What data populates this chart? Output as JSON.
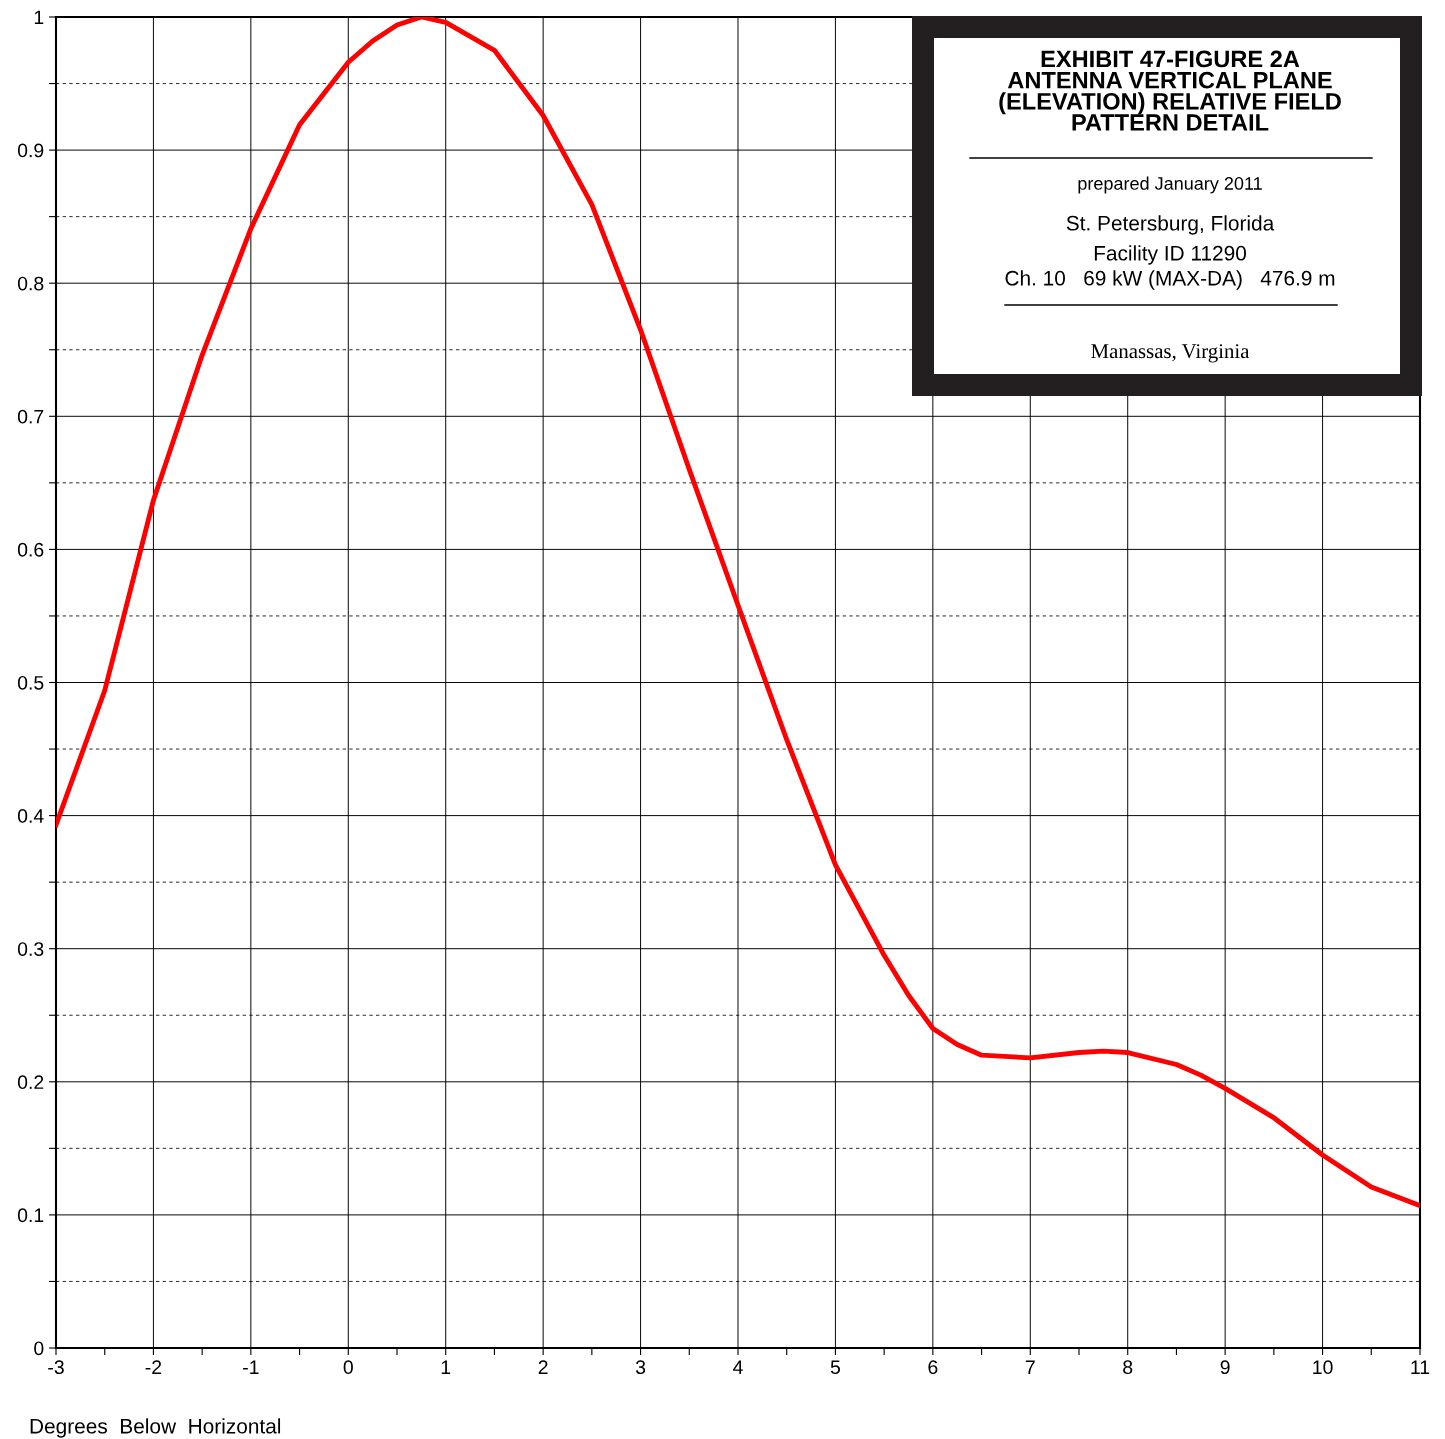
{
  "chart_data": {
    "type": "line",
    "title": "EXHIBIT 47-FIGURE 2A\nANTENNA VERTICAL PLANE\n(ELEVATION) RELATIVE FIELD\nPATTERN DETAIL",
    "xlabel": "Degrees  Below  Horizontal",
    "annotations": [
      "prepared January 2011",
      "St. Petersburg, Florida",
      "Facility ID 11290",
      "Ch. 10   69 kW (MAX-DA)   476.9 m",
      "Manassas, Virginia"
    ],
    "x": [
      -3,
      -2.5,
      -2,
      -1.5,
      -1,
      -0.5,
      0,
      0.25,
      0.5,
      0.75,
      1,
      1.5,
      2,
      2.5,
      3,
      3.5,
      4,
      4.5,
      5,
      5.5,
      5.75,
      6,
      6.25,
      6.5,
      7,
      7.5,
      7.75,
      8,
      8.5,
      8.75,
      9,
      9.5,
      10,
      10.5,
      11
    ],
    "series": [
      {
        "color": "#ff0000",
        "values": [
          0.393,
          0.494,
          0.637,
          0.746,
          0.841,
          0.919,
          0.966,
          0.982,
          0.994,
          1.0,
          0.996,
          0.975,
          0.926,
          0.859,
          0.765,
          0.66,
          0.558,
          0.457,
          0.363,
          0.295,
          0.265,
          0.24,
          0.228,
          0.22,
          0.218,
          0.222,
          0.223,
          0.222,
          0.213,
          0.205,
          0.195,
          0.173,
          0.145,
          0.121,
          0.107
        ]
      }
    ],
    "xlim": [
      -3,
      11
    ],
    "ylim": [
      0,
      1
    ],
    "xticks": [
      -3,
      {
        "value": -2.5,
        "label": null
      },
      -2,
      {
        "value": -1.5,
        "label": null
      },
      -1,
      {
        "value": -0.5,
        "label": null
      },
      0,
      {
        "value": 0.5,
        "label": null
      },
      1,
      {
        "value": 1.5,
        "label": null
      },
      2,
      {
        "value": 2.5,
        "label": null
      },
      3,
      {
        "value": 3.5,
        "label": null
      },
      4,
      {
        "value": 4.5,
        "label": null
      },
      5,
      {
        "value": 5.5,
        "label": null
      },
      6,
      {
        "value": 6.5,
        "label": null
      },
      7,
      {
        "value": 7.5,
        "label": null
      },
      8,
      {
        "value": 8.5,
        "label": null
      },
      9,
      {
        "value": 9.5,
        "label": null
      },
      10,
      {
        "value": 10.5,
        "label": null
      },
      11
    ],
    "yticks": [
      0,
      {
        "value": 0.05,
        "label": null
      },
      0.1,
      {
        "value": 0.15,
        "label": null
      },
      0.2,
      {
        "value": 0.25,
        "label": null
      },
      0.3,
      {
        "value": 0.35,
        "label": null
      },
      0.4,
      {
        "value": 0.45,
        "label": null
      },
      0.5,
      {
        "value": 0.55,
        "label": null
      },
      0.6,
      {
        "value": 0.65,
        "label": null
      },
      0.7,
      {
        "value": 0.75,
        "label": null
      },
      0.8,
      {
        "value": 0.85,
        "label": null
      },
      0.9,
      {
        "value": 0.95,
        "label": null
      },
      1
    ],
    "grid": true,
    "line_style": "solid",
    "marker": "none"
  }
}
